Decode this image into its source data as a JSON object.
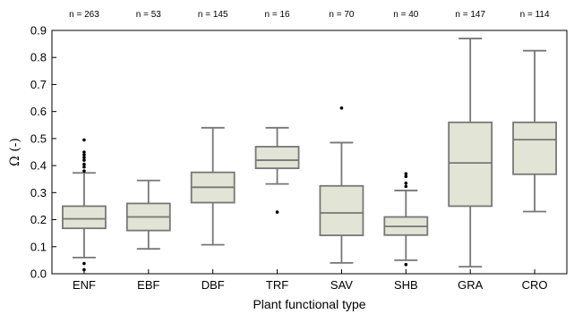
{
  "chart_data": {
    "type": "boxplot",
    "title": "",
    "xlabel": "Plant functional type",
    "ylabel": "Ω (-)",
    "ylim": [
      0,
      0.9
    ],
    "yticks": [
      "0.0",
      "0.1",
      "0.2",
      "0.3",
      "0.4",
      "0.5",
      "0.6",
      "0.7",
      "0.8",
      "0.9"
    ],
    "ytick_values": [
      0,
      0.1,
      0.2,
      0.3,
      0.4,
      0.5,
      0.6,
      0.7,
      0.8,
      0.9
    ],
    "grid": false,
    "categories": [
      "ENF",
      "EBF",
      "DBF",
      "TRF",
      "SAV",
      "SHB",
      "GRA",
      "CRO"
    ],
    "n_labels": [
      "n = 263",
      "n = 53",
      "n = 145",
      "n = 16",
      "n = 70",
      "n = 40",
      "n = 147",
      "n = 114"
    ],
    "boxes": [
      {
        "category": "ENF",
        "whisker_low": 0.06,
        "q1": 0.168,
        "median": 0.203,
        "q3": 0.25,
        "whisker_high": 0.373,
        "outliers": [
          0.015,
          0.038,
          0.38,
          0.395,
          0.405,
          0.42,
          0.43,
          0.44,
          0.45,
          0.495
        ]
      },
      {
        "category": "EBF",
        "whisker_low": 0.092,
        "q1": 0.16,
        "median": 0.21,
        "q3": 0.26,
        "whisker_high": 0.345,
        "outliers": []
      },
      {
        "category": "DBF",
        "whisker_low": 0.107,
        "q1": 0.263,
        "median": 0.32,
        "q3": 0.375,
        "whisker_high": 0.54,
        "outliers": []
      },
      {
        "category": "TRF",
        "whisker_low": 0.332,
        "q1": 0.39,
        "median": 0.42,
        "q3": 0.47,
        "whisker_high": 0.54,
        "outliers": [
          0.228
        ]
      },
      {
        "category": "SAV",
        "whisker_low": 0.04,
        "q1": 0.142,
        "median": 0.225,
        "q3": 0.325,
        "whisker_high": 0.485,
        "outliers": [
          0.613
        ]
      },
      {
        "category": "SHB",
        "whisker_low": 0.05,
        "q1": 0.143,
        "median": 0.175,
        "q3": 0.21,
        "whisker_high": 0.308,
        "outliers": [
          0.034,
          0.323,
          0.335,
          0.36,
          0.37
        ]
      },
      {
        "category": "GRA",
        "whisker_low": 0.026,
        "q1": 0.25,
        "median": 0.41,
        "q3": 0.56,
        "whisker_high": 0.87,
        "outliers": []
      },
      {
        "category": "CRO",
        "whisker_low": 0.23,
        "q1": 0.368,
        "median": 0.496,
        "q3": 0.56,
        "whisker_high": 0.825,
        "outliers": []
      }
    ],
    "colors": {
      "box_fill": "#e2e4d6",
      "stroke": "#777777",
      "outlier": "#000000",
      "axis": "#000000"
    }
  }
}
